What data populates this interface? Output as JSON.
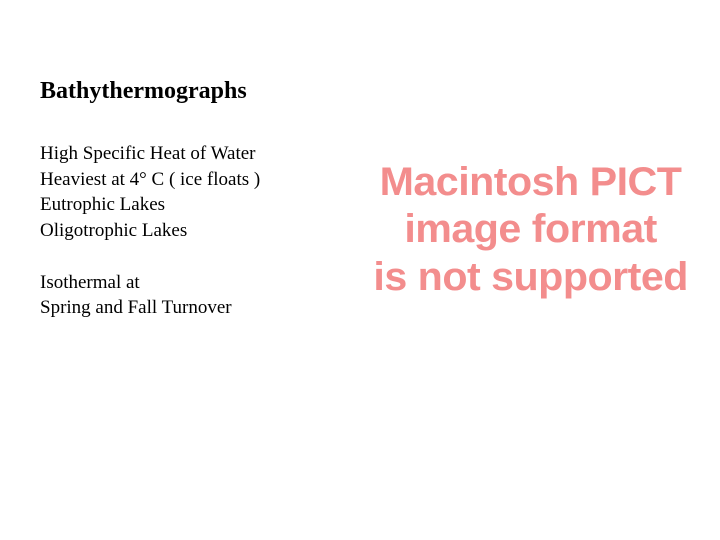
{
  "heading": "Bathythermographs",
  "para1": {
    "l1": "High Specific Heat of Water",
    "l2": "Heaviest at 4° C ( ice floats )",
    "l3": "Eutrophic Lakes",
    "l4": "Oligotrophic Lakes"
  },
  "para2": {
    "l1": "Isothermal at",
    "l2": "Spring and Fall Turnover"
  },
  "pict": {
    "l1": "Macintosh PICT",
    "l2": "image format",
    "l3": "is not supported",
    "color": "#f38d8d"
  }
}
